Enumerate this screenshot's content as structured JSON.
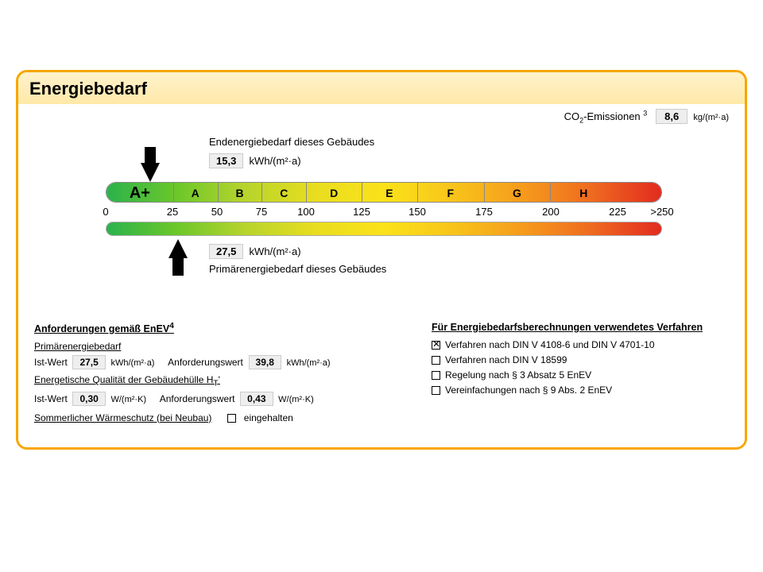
{
  "colors": {
    "card_border": "#f7a600",
    "header_bg_top": "#fff2cc",
    "header_bg_bottom": "#ffe9a8",
    "body_bg": "#ffffff",
    "gradient_stops": [
      "#2bb24c",
      "#6bc72a",
      "#b7d42c",
      "#e8dd1f",
      "#fbe21a",
      "#f8c41a",
      "#f69b1c",
      "#ef6a1f",
      "#e22b1f"
    ],
    "divider": "#888888",
    "valbox_bg": "#eeeeee",
    "valbox_border": "#cccccc",
    "arrow": "#000000"
  },
  "title": "Energiebedarf",
  "co2": {
    "label_prefix": "CO",
    "label_sub": "2",
    "label_rest": "-Emissionen",
    "footnote": "3",
    "value": "8,6",
    "unit": "kg/(m²·a)"
  },
  "bar": {
    "segment_labels": [
      "A+",
      "A",
      "B",
      "C",
      "D",
      "E",
      "F",
      "G",
      "H"
    ],
    "ticks": [
      "0",
      "25",
      "50",
      "75",
      "100",
      "125",
      "150",
      "175",
      "200",
      "225",
      ">250"
    ],
    "segment_lefts_pct": [
      0,
      12,
      20,
      28,
      36,
      46,
      56,
      68,
      80,
      92
    ],
    "tick_positions_pct": [
      0,
      12,
      20,
      28,
      36,
      46,
      56,
      68,
      80,
      92,
      100
    ]
  },
  "top_marker": {
    "label": "Endenergiebedarf dieses Gebäudes",
    "value": "15,3",
    "unit": "kWh/(m²·a)",
    "position_pct": 8
  },
  "bottom_marker": {
    "label": "Primärenergiebedarf dieses Gebäudes",
    "value": "27,5",
    "unit": "kWh/(m²·a)",
    "position_pct": 13
  },
  "requirements": {
    "title": "Anforderungen gemäß EnEV",
    "title_foot": "4",
    "primary": {
      "heading": "Primärenergiebedarf",
      "ist_label": "Ist-Wert",
      "ist_value": "27,5",
      "ist_unit": "kWh/(m²·a)",
      "anf_label": "Anforderungswert",
      "anf_value": "39,8",
      "anf_unit": "kWh/(m²·a)"
    },
    "envelope": {
      "heading": "Energetische Qualität der Gebäudehülle H",
      "heading_sub": "T",
      "heading_foot": "'",
      "ist_label": "Ist-Wert",
      "ist_value": "0,30",
      "ist_unit": "W/(m²·K)",
      "anf_label": "Anforderungswert",
      "anf_value": "0,43",
      "anf_unit": "W/(m²·K)"
    },
    "summer": {
      "heading": "Sommerlicher Wärmeschutz (bei Neubau)",
      "opt_label": "eingehalten",
      "opt_checked": false
    }
  },
  "method": {
    "title": "Für Energiebedarfsberechnungen verwendetes Verfahren",
    "options": [
      {
        "label": "Verfahren nach DIN V 4108-6 und DIN V 4701-10",
        "checked": true
      },
      {
        "label": "Verfahren nach DIN V 18599",
        "checked": false
      },
      {
        "label": "Regelung nach § 3 Absatz 5 EnEV",
        "checked": false
      },
      {
        "label": "Vereinfachungen nach § 9 Abs. 2 EnEV",
        "checked": false
      }
    ]
  }
}
